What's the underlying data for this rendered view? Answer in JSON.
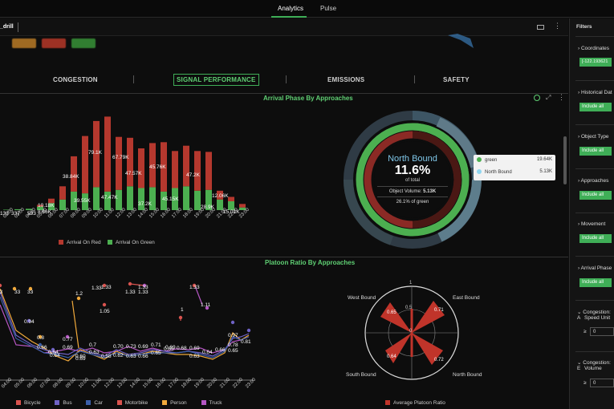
{
  "nav": {
    "tabs": [
      "Analytics",
      "Pulse"
    ],
    "active": "Analytics"
  },
  "toolbar": {
    "title": "_drill"
  },
  "sections": [
    "CONGESTION",
    "SIGNAL PERFORMANCE",
    "EMISSIONS",
    "SAFETY"
  ],
  "panel1": {
    "title": "Arrival Phase By Approaches",
    "legend": [
      "Arrival On Red",
      "Arrival On Green"
    ],
    "bar_labels": [
      "133",
      "337",
      "593",
      "10.18K",
      "8.66K",
      "38.84K",
      "39.55K",
      "79.1K",
      "47.47K",
      "67.79K",
      "47.57K",
      "37.2K",
      "45.76K",
      "45.15K",
      "47.2K",
      "28.9K",
      "12.06K",
      "15.01K"
    ],
    "x_ticks": [
      "02:00",
      "03:00",
      "04:00",
      "05:00",
      "06:00",
      "07:00",
      "08:00",
      "09:00",
      "10:00",
      "11:00",
      "12:00",
      "13:00",
      "14:00",
      "15:00",
      "16:00",
      "17:00",
      "18:00",
      "19:00",
      "20:00",
      "21:00",
      "22:00",
      "23:00"
    ]
  },
  "donut": {
    "title": "North Bound",
    "percent": "11.6%",
    "sub": "of total",
    "volume_label": "Object Volume:",
    "volume_value": "5.13K",
    "green_pct": "26.1% of green",
    "tooltip": [
      {
        "label": "green",
        "value": "19.64K",
        "color": "#4caf50"
      },
      {
        "label": "North Bound",
        "value": "5.13K",
        "color": "#8fd6f0"
      }
    ]
  },
  "panel2": {
    "title": "Platoon Ratio By Approaches",
    "legend": [
      "Bicycle",
      "Bus",
      "Car",
      "Motorbike",
      "Person",
      "Truck"
    ],
    "legend_colors": [
      "#d9534f",
      "#6f62c4",
      "#3b5ea8",
      "#d9534f",
      "#f0a93b",
      "#b657c4"
    ],
    "labels": [
      "33",
      "33",
      "33",
      "1.33",
      "1.33",
      "0.94",
      "0.8",
      "0.66",
      "0.64",
      "0.77",
      "0.69",
      "0.64",
      "1.2",
      "0.69",
      "0.60",
      "0.7",
      "0.63",
      "0.58",
      "1.33",
      "1.05",
      "0.70",
      "0.62",
      "0.73",
      "0.63",
      "1.33",
      "1.33",
      "0.69",
      "0.66",
      "0.71",
      "0.65",
      "0.65",
      "0.69",
      "0.68",
      "1",
      "1.33",
      "0.69",
      "0.63",
      "1.11",
      "0.64",
      "0.66",
      "0.97",
      "0.78",
      "0.65",
      "0.81"
    ],
    "x_ticks": [
      "04:00",
      "05:00",
      "06:00",
      "07:00",
      "08:00",
      "09:00",
      "10:00",
      "11:00",
      "12:00",
      "13:00",
      "14:00",
      "15:00",
      "16:00",
      "17:00",
      "18:00",
      "19:00",
      "20:00",
      "21:00",
      "22:00",
      "23:00"
    ]
  },
  "polar": {
    "legend": "Average Platoon Ratio",
    "directions": [
      "West Bound",
      "East Bound",
      "South Bound",
      "North Bound"
    ],
    "values": [
      "0.65",
      "0.71",
      "0.64",
      "0.72"
    ],
    "ring_labels": [
      "1",
      "0.5",
      "0"
    ]
  },
  "sidebar": {
    "title": "Filters",
    "coordinates": "Coordinates",
    "coord_value": "[-122.193621",
    "historical": "Historical Dat",
    "object_type": "Object Type",
    "approaches": "Approaches",
    "movement": "Movement",
    "arrival_phase": "Arrival Phase",
    "include_all": "Include all",
    "cong_speed": "Congestion: A",
    "cong_speed2": "Speed Unit",
    "cong_volume": "Congestion: E",
    "cong_volume2": "Volume",
    "ge": "≥",
    "zero": "0"
  },
  "chart_data": [
    {
      "type": "bar",
      "title": "Arrival Phase By Approaches",
      "categories": [
        "02:00",
        "03:00",
        "04:00",
        "05:00",
        "06:00",
        "07:00",
        "08:00",
        "09:00",
        "10:00",
        "11:00",
        "12:00",
        "13:00",
        "14:00",
        "15:00",
        "16:00",
        "17:00",
        "18:00",
        "19:00",
        "20:00",
        "21:00",
        "22:00",
        "23:00"
      ],
      "series": [
        {
          "name": "Arrival On Red",
          "values": [
            0,
            0,
            0,
            0.2,
            0.5,
            1.5,
            4.0,
            6.5,
            7.5,
            8.5,
            6.0,
            5.5,
            4.5,
            5.0,
            5.6,
            4.2,
            4.6,
            4.5,
            4.3,
            1.0,
            0.5,
            0.4
          ]
        },
        {
          "name": "Arrival On Green",
          "values": [
            0.05,
            0.1,
            0.15,
            0.4,
            0.8,
            1.2,
            2.1,
            1.9,
            2.6,
            2.1,
            2.3,
            2.7,
            2.5,
            2.6,
            2.1,
            2.5,
            2.7,
            2.2,
            2.3,
            1.2,
            1.0,
            0.3
          ]
        }
      ]
    }
  ]
}
